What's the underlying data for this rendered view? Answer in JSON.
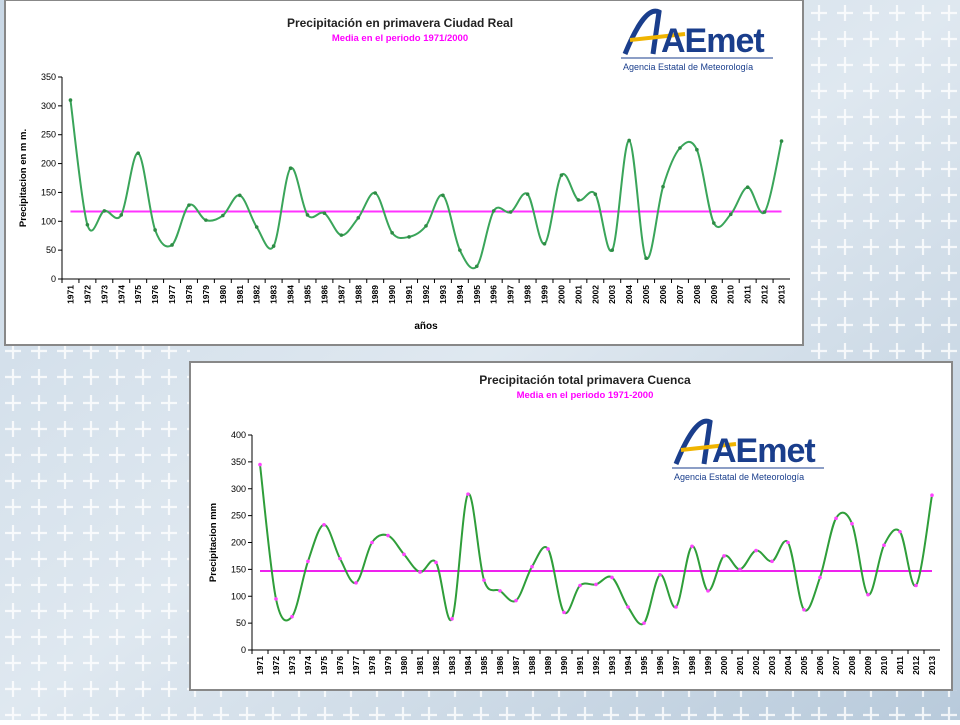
{
  "chart_data": [
    {
      "type": "line",
      "title": "Precipitación en  primavera Ciudad Real",
      "subtitle": "Media en el periodo 1971/2000",
      "y_label": "Precipitacion en m m.",
      "x_label": "años",
      "logo": "AEmet",
      "logo_caption": "Agencia Estatal de Meteorología",
      "categories": [
        "1971",
        "1972",
        "1973",
        "1974",
        "1975",
        "1976",
        "1977",
        "1978",
        "1979",
        "1980",
        "1981",
        "1982",
        "1983",
        "1984",
        "1985",
        "1986",
        "1987",
        "1988",
        "1989",
        "1990",
        "1991",
        "1992",
        "1993",
        "1994",
        "1995",
        "1996",
        "1997",
        "1998",
        "1999",
        "2000",
        "2001",
        "2002",
        "2003",
        "2004",
        "2005",
        "2006",
        "2007",
        "2008",
        "2009",
        "2010",
        "2011",
        "2012",
        "2013"
      ],
      "series": [
        {
          "color": "#3aa55a",
          "marker_color": "#2e8b45",
          "values": [
            310,
            94,
            118,
            111,
            218,
            85,
            59,
            128,
            102,
            110,
            145,
            90,
            57,
            192,
            111,
            114,
            76,
            106,
            149,
            80,
            73,
            92,
            145,
            50,
            22,
            118,
            116,
            147,
            61,
            180,
            137,
            147,
            50,
            240,
            36,
            160,
            227,
            224,
            97,
            112,
            159,
            116,
            239
          ]
        }
      ],
      "mean_line": {
        "value": 117,
        "color": "#ff33ff"
      },
      "ylim": [
        0,
        350
      ],
      "yticks": [
        0,
        50,
        100,
        150,
        200,
        250,
        300,
        350
      ]
    },
    {
      "type": "line",
      "title": "Precipitación total  primavera Cuenca",
      "subtitle": "Media en el periodo 1971-2000",
      "y_label": "Precipitacion  mm",
      "logo": "AEmet",
      "logo_caption": "Agencia Estatal de Meteorología",
      "categories": [
        "1971",
        "1972",
        "1973",
        "1974",
        "1975",
        "1976",
        "1977",
        "1978",
        "1979",
        "1980",
        "1981",
        "1982",
        "1983",
        "1984",
        "1985",
        "1986",
        "1987",
        "1988",
        "1989",
        "1990",
        "1991",
        "1992",
        "1993",
        "1994",
        "1995",
        "1996",
        "1997",
        "1998",
        "1999",
        "2000",
        "2001",
        "2002",
        "2003",
        "2004",
        "2005",
        "2006",
        "2007",
        "2008",
        "2009",
        "2010",
        "2011",
        "2012",
        "2013"
      ],
      "series": [
        {
          "color": "#2f9e3a",
          "marker_color": "#ff44ff",
          "values": [
            345,
            95,
            62,
            165,
            233,
            170,
            125,
            200,
            213,
            178,
            145,
            163,
            58,
            290,
            130,
            110,
            92,
            155,
            188,
            70,
            120,
            122,
            135,
            80,
            50,
            140,
            80,
            193,
            110,
            175,
            150,
            185,
            165,
            200,
            75,
            135,
            245,
            235,
            103,
            195,
            220,
            120,
            288
          ]
        }
      ],
      "mean_line": {
        "value": 147,
        "color": "#ee22ee"
      },
      "ylim": [
        0,
        400
      ],
      "yticks": [
        0,
        50,
        100,
        150,
        200,
        250,
        300,
        350,
        400
      ]
    }
  ]
}
